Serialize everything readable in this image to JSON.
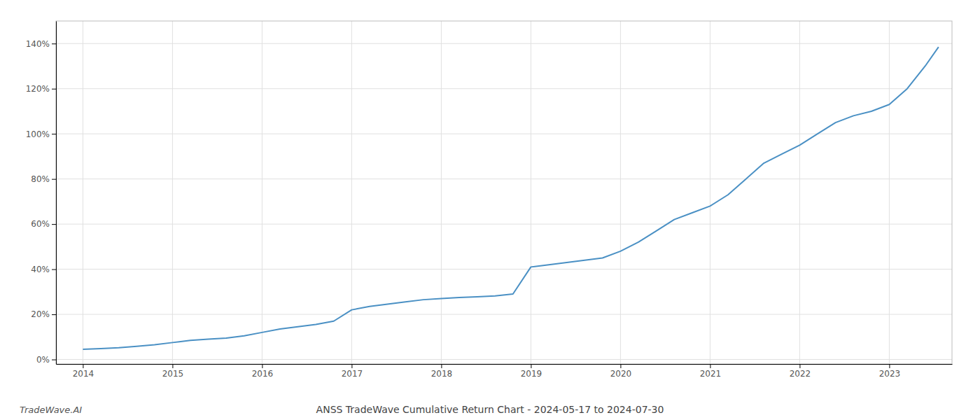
{
  "chart_data": {
    "type": "line",
    "title": "ANSS TradeWave Cumulative Return Chart - 2024-05-17 to 2024-07-30",
    "annotations": [
      "TradeWave.AI"
    ],
    "color": "#4a90c4",
    "grid": true,
    "x": [
      2014.0,
      2014.2,
      2014.4,
      2014.6,
      2014.8,
      2015.0,
      2015.2,
      2015.4,
      2015.6,
      2015.8,
      2016.0,
      2016.2,
      2016.4,
      2016.6,
      2016.8,
      2017.0,
      2017.2,
      2017.4,
      2017.6,
      2017.8,
      2018.0,
      2018.2,
      2018.4,
      2018.6,
      2018.8,
      2019.0,
      2019.2,
      2019.4,
      2019.6,
      2019.8,
      2020.0,
      2020.2,
      2020.4,
      2020.6,
      2020.8,
      2021.0,
      2021.2,
      2021.4,
      2021.6,
      2021.8,
      2022.0,
      2022.2,
      2022.4,
      2022.6,
      2022.8,
      2023.0,
      2023.2,
      2023.4,
      2023.55
    ],
    "values": [
      4.5,
      4.8,
      5.2,
      5.8,
      6.5,
      7.5,
      8.5,
      9.0,
      9.5,
      10.5,
      12.0,
      13.5,
      14.5,
      15.5,
      17.0,
      22.0,
      23.5,
      24.5,
      25.5,
      26.5,
      27.0,
      27.5,
      27.8,
      28.2,
      29.0,
      41.0,
      42.0,
      43.0,
      44.0,
      45.0,
      48.0,
      52.0,
      57.0,
      62.0,
      65.0,
      68.0,
      73.0,
      80.0,
      87.0,
      91.0,
      95.0,
      100.0,
      105.0,
      108.0,
      110.0,
      113.0,
      120.0,
      130.0,
      138.5
    ],
    "xlim": [
      2013.7,
      2023.7
    ],
    "ylim": [
      -2,
      150
    ],
    "xticks": [
      2014,
      2015,
      2016,
      2017,
      2018,
      2019,
      2020,
      2021,
      2022,
      2023
    ],
    "yticks": [
      {
        "value": 0,
        "label": "0%"
      },
      {
        "value": 20,
        "label": "20%"
      },
      {
        "value": 40,
        "label": "40%"
      },
      {
        "value": 60,
        "label": "60%"
      },
      {
        "value": 80,
        "label": "80%"
      },
      {
        "value": 100,
        "label": "100%"
      },
      {
        "value": 120,
        "label": "120%"
      },
      {
        "value": 140,
        "label": "140%"
      }
    ]
  }
}
